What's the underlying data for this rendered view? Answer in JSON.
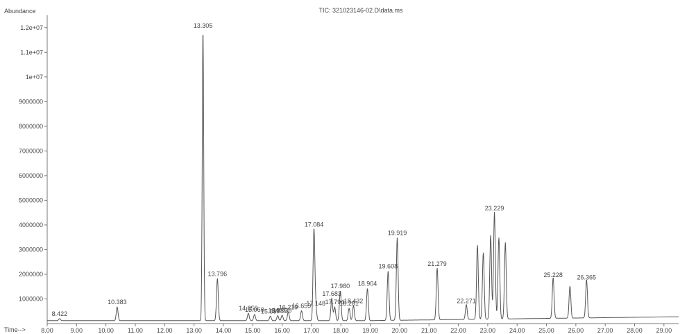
{
  "chart_data": {
    "type": "line",
    "title": "TIC: 321023146-02.D\\data.ms",
    "ylabel": "Abundance",
    "xlabel": "Time-->",
    "xlim": [
      8.0,
      29.5
    ],
    "ylim": [
      0,
      12500000
    ],
    "x_ticks": [
      "8.00",
      "9.00",
      "10.00",
      "11.00",
      "12.00",
      "13.00",
      "14.00",
      "15.00",
      "16.00",
      "17.00",
      "18.00",
      "19.00",
      "20.00",
      "21.00",
      "22.00",
      "23.00",
      "24.00",
      "25.00",
      "26.00",
      "27.00",
      "28.00",
      "29.00"
    ],
    "y_ticks": [
      {
        "value": 1000000,
        "label": "1000000"
      },
      {
        "value": 2000000,
        "label": "2000000"
      },
      {
        "value": 3000000,
        "label": "3000000"
      },
      {
        "value": 4000000,
        "label": "4000000"
      },
      {
        "value": 5000000,
        "label": "5000000"
      },
      {
        "value": 6000000,
        "label": "6000000"
      },
      {
        "value": 7000000,
        "label": "7000000"
      },
      {
        "value": 8000000,
        "label": "8000000"
      },
      {
        "value": 9000000,
        "label": "9000000"
      },
      {
        "value": 10000000,
        "label": "1e+07"
      },
      {
        "value": 11000000,
        "label": "1.1e+07"
      },
      {
        "value": 12000000,
        "label": "1.2e+07"
      }
    ],
    "baseline": 120000,
    "peaks": [
      {
        "rt": 8.422,
        "height": 80000,
        "label": "8.422"
      },
      {
        "rt": 10.383,
        "height": 550000,
        "label": "10.383"
      },
      {
        "rt": 13.305,
        "height": 11800000,
        "label": "13.305"
      },
      {
        "rt": 13.796,
        "height": 1700000,
        "label": "13.796"
      },
      {
        "rt": 14.85,
        "height": 300000,
        "label": "14.850"
      },
      {
        "rt": 15.06,
        "height": 250000,
        "label": "15.060"
      },
      {
        "rt": 15.6,
        "height": 180000,
        "label": "15.697"
      },
      {
        "rt": 15.85,
        "height": 200000,
        "label": "15.885"
      },
      {
        "rt": 16.0,
        "height": 220000,
        "label": "16.036"
      },
      {
        "rt": 16.21,
        "height": 350000,
        "label": "16.219"
      },
      {
        "rt": 16.66,
        "height": 400000,
        "label": "16.659"
      },
      {
        "rt": 17.084,
        "height": 3700000,
        "label": "17.084"
      },
      {
        "rt": 17.148,
        "height": 500000,
        "label": "17.148"
      },
      {
        "rt": 17.69,
        "height": 900000,
        "label": "17.683"
      },
      {
        "rt": 17.79,
        "height": 550000,
        "label": "17.794"
      },
      {
        "rt": 17.98,
        "height": 1200000,
        "label": "17.980"
      },
      {
        "rt": 18.28,
        "height": 500000,
        "label": "18.281"
      },
      {
        "rt": 18.43,
        "height": 600000,
        "label": "18.432"
      },
      {
        "rt": 18.904,
        "height": 1300000,
        "label": "18.904"
      },
      {
        "rt": 19.608,
        "height": 2000000,
        "label": "19.608"
      },
      {
        "rt": 19.919,
        "height": 3350000,
        "label": "19.919"
      },
      {
        "rt": 21.279,
        "height": 2100000,
        "label": "21.279"
      },
      {
        "rt": 22.271,
        "height": 600000,
        "label": "22.271"
      },
      {
        "rt": 22.65,
        "height": 3000000,
        "label": ""
      },
      {
        "rt": 22.85,
        "height": 2700000,
        "label": ""
      },
      {
        "rt": 23.1,
        "height": 3400000,
        "label": ""
      },
      {
        "rt": 23.229,
        "height": 4350000,
        "label": "23.229"
      },
      {
        "rt": 23.38,
        "height": 3300000,
        "label": ""
      },
      {
        "rt": 23.6,
        "height": 3100000,
        "label": ""
      },
      {
        "rt": 25.228,
        "height": 1650000,
        "label": "25.228"
      },
      {
        "rt": 25.8,
        "height": 1300000,
        "label": ""
      },
      {
        "rt": 26.365,
        "height": 1550000,
        "label": "26.365"
      }
    ]
  }
}
